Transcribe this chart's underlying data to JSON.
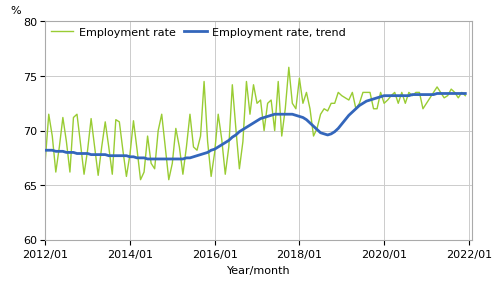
{
  "xlabel": "Year/month",
  "ylabel": "%",
  "ylim": [
    60,
    80
  ],
  "yticks": [
    60,
    65,
    70,
    75,
    80
  ],
  "xtick_labels": [
    "2012/01",
    "2014/01",
    "2016/01",
    "2018/01",
    "2020/01",
    "2022/01"
  ],
  "legend_employment": "Employment rate",
  "legend_trend": "Employment rate, trend",
  "employment_color": "#99cc33",
  "trend_color": "#3366bb",
  "employment_linewidth": 1.0,
  "trend_linewidth": 2.0,
  "background_color": "#ffffff",
  "grid_color": "#cccccc",
  "employment_rate": [
    67.2,
    71.5,
    69.5,
    66.2,
    68.5,
    71.2,
    69.0,
    66.2,
    71.2,
    71.5,
    68.8,
    66.0,
    68.2,
    71.1,
    68.5,
    65.9,
    68.5,
    70.8,
    68.5,
    66.0,
    71.0,
    70.8,
    68.2,
    65.8,
    67.8,
    70.9,
    68.3,
    65.5,
    66.2,
    69.5,
    67.0,
    66.5,
    70.0,
    71.5,
    68.5,
    65.5,
    67.0,
    70.2,
    68.5,
    66.0,
    68.5,
    71.5,
    68.5,
    68.2,
    69.5,
    74.5,
    69.0,
    65.8,
    68.0,
    71.5,
    69.2,
    66.0,
    68.5,
    74.2,
    70.2,
    66.5,
    69.0,
    74.5,
    71.5,
    74.2,
    72.5,
    72.8,
    70.0,
    72.5,
    72.8,
    70.0,
    74.5,
    69.5,
    72.0,
    75.8,
    72.5,
    72.0,
    74.8,
    72.5,
    73.5,
    72.0,
    69.5,
    70.2,
    71.5,
    72.0,
    71.8,
    72.5,
    72.5,
    73.5,
    73.2,
    73.0,
    72.8,
    73.5,
    72.0,
    72.5,
    73.5,
    73.5,
    73.5,
    72.0,
    72.0,
    73.5,
    72.5,
    72.8,
    73.2,
    73.5,
    72.5,
    73.5,
    72.5,
    73.5,
    73.2,
    73.5,
    73.5,
    72.0,
    72.5,
    73.0,
    73.5,
    74.0,
    73.5,
    73.0,
    73.2,
    73.8,
    73.5,
    73.0,
    73.5,
    73.2
  ],
  "trend_rate": [
    68.2,
    68.2,
    68.2,
    68.1,
    68.1,
    68.1,
    68.0,
    68.0,
    68.0,
    67.9,
    67.9,
    67.9,
    67.9,
    67.8,
    67.8,
    67.8,
    67.8,
    67.8,
    67.7,
    67.7,
    67.7,
    67.7,
    67.7,
    67.7,
    67.6,
    67.6,
    67.5,
    67.5,
    67.5,
    67.4,
    67.4,
    67.4,
    67.4,
    67.4,
    67.4,
    67.4,
    67.4,
    67.4,
    67.4,
    67.4,
    67.5,
    67.5,
    67.6,
    67.7,
    67.8,
    67.9,
    68.0,
    68.2,
    68.3,
    68.5,
    68.7,
    68.9,
    69.1,
    69.4,
    69.6,
    69.9,
    70.1,
    70.3,
    70.5,
    70.7,
    70.9,
    71.1,
    71.2,
    71.3,
    71.4,
    71.5,
    71.5,
    71.5,
    71.5,
    71.5,
    71.5,
    71.4,
    71.3,
    71.2,
    71.0,
    70.7,
    70.4,
    70.1,
    69.8,
    69.7,
    69.6,
    69.7,
    69.9,
    70.2,
    70.6,
    71.0,
    71.4,
    71.7,
    72.0,
    72.3,
    72.5,
    72.7,
    72.8,
    72.9,
    73.0,
    73.1,
    73.2,
    73.2,
    73.2,
    73.2,
    73.2,
    73.2,
    73.2,
    73.2,
    73.3,
    73.3,
    73.3,
    73.3,
    73.3,
    73.3,
    73.3,
    73.4,
    73.4,
    73.4,
    73.4,
    73.4,
    73.4,
    73.4,
    73.4,
    73.4
  ]
}
